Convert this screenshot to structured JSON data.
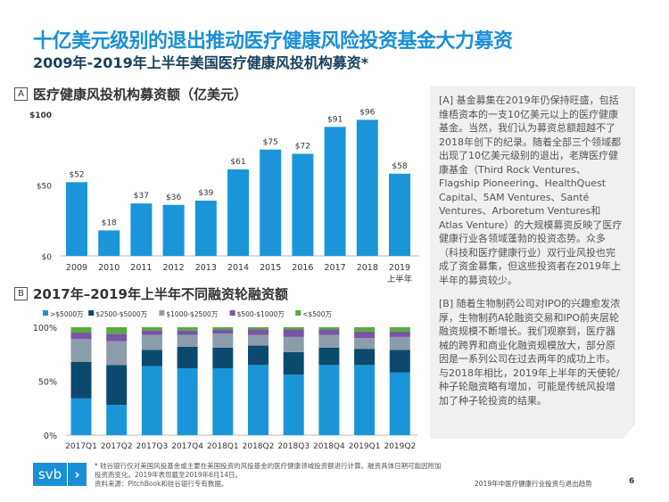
{
  "header": {
    "title": "十亿美元级别的退出推动医疗健康风险投资基金大力募资",
    "subtitle": "2009年-2019年上半年美国医疗健康风投机构募资*"
  },
  "section_a": {
    "marker": "A",
    "title": "医疗健康风投机构募资额（亿美元）"
  },
  "section_b": {
    "marker": "B",
    "title": "2017年–2019年上半年不同融资轮融资额"
  },
  "panel": {
    "text_a": "[A] 基金募集在2019年仍保持旺盛，包括维梧资本的一支10亿美元以上的医疗健康基金。当然，我们认为募资总额超越不了2018年创下的纪录。随着全部三个领域都出现了10亿美元级别的退出，老牌医疗健康基金（Third Rock Ventures、Flagship Pioneering、HealthQuest Capital、5AM Ventures、Santé Ventures、Arboretum Ventures和Atlas Venture）的大规模募资反映了医疗健康行业各领域蓬勃的投资态势。众多（科技和医疗健康行业）双行业风投也完成了资金募集，但这些投资者在2019年上半年的募资较少。",
    "text_b": "[B] 随着生物制药公司对IPO的兴趣愈发浓厚，生物制药A轮融资交易和IPO前夹层轮融资规模不断增长。我们观察到，医疗器械的跨界和商业化融资规模放大，部分原因是一系列公司在过去两年的成功上市。与2018年相比，2019年上半年的天使轮/种子轮融资略有增加，可能是传统风投增加了种子轮投资的结果。"
  },
  "footer": {
    "logo": "svb",
    "note": "* 硅谷银行仅对美国风投基金或主要在美国投资的风投基金的医疗健康领域投资额进行计算。融资具体日期可能因附加投资而变化。2019年表现截至2019年6月14日。",
    "source": "资料来源：PitchBook和硅谷银行专有数据。",
    "report": "2019年中医疗健康行业投资与退出趋势",
    "page": "6"
  },
  "chart_data": [
    {
      "type": "bar",
      "title": "医疗健康风投机构募资额（亿美元）",
      "categories": [
        "2009",
        "2010",
        "2011",
        "2012",
        "2013",
        "2014",
        "2015",
        "2016",
        "2017",
        "2018",
        "2019\n上半年"
      ],
      "values": [
        52,
        18,
        37,
        36,
        39,
        61,
        75,
        72,
        91,
        96,
        58
      ],
      "data_labels": [
        "$52",
        "$18",
        "$37",
        "$36",
        "$39",
        "$61",
        "$75",
        "$72",
        "$91",
        "$96",
        "$58"
      ],
      "yticks": [
        "$0",
        "$50",
        "$100"
      ],
      "ylim": [
        0,
        100
      ],
      "color": "#1a96d8",
      "grid": false
    },
    {
      "type": "bar",
      "stacked": true,
      "percent": true,
      "title": "2017年–2019年上半年不同融资轮融资额",
      "categories": [
        "2017Q1",
        "2017Q2",
        "2017Q3",
        "2017Q4",
        "2018Q1",
        "2018Q2",
        "2018Q3",
        "2018Q4",
        "2019Q1",
        "2019Q2"
      ],
      "yticks": [
        "0%",
        "50%",
        "100%"
      ],
      "ylim": [
        0,
        100
      ],
      "legend_position": "top",
      "grid": false,
      "series": [
        {
          "name": ">$5000万",
          "color": "#1a96d8",
          "values": [
            34,
            28,
            64,
            62,
            62,
            65,
            56,
            65,
            65,
            58
          ]
        },
        {
          "name": "$2500-$5000万",
          "color": "#0b4a6e",
          "values": [
            34,
            37,
            15,
            20,
            19,
            18,
            21,
            16,
            15,
            21
          ]
        },
        {
          "name": "$1000-$2500万",
          "color": "#8d9caa",
          "values": [
            21,
            22,
            14,
            11,
            13,
            10,
            14,
            12,
            10,
            12
          ]
        },
        {
          "name": "$500-$1000万",
          "color": "#7a55a6",
          "values": [
            6,
            7,
            4,
            4,
            4,
            5,
            7,
            5,
            6,
            5
          ]
        },
        {
          "name": "<$500万",
          "color": "#5aaa3e",
          "values": [
            5,
            6,
            3,
            3,
            2,
            2,
            2,
            2,
            4,
            4
          ]
        }
      ]
    }
  ]
}
